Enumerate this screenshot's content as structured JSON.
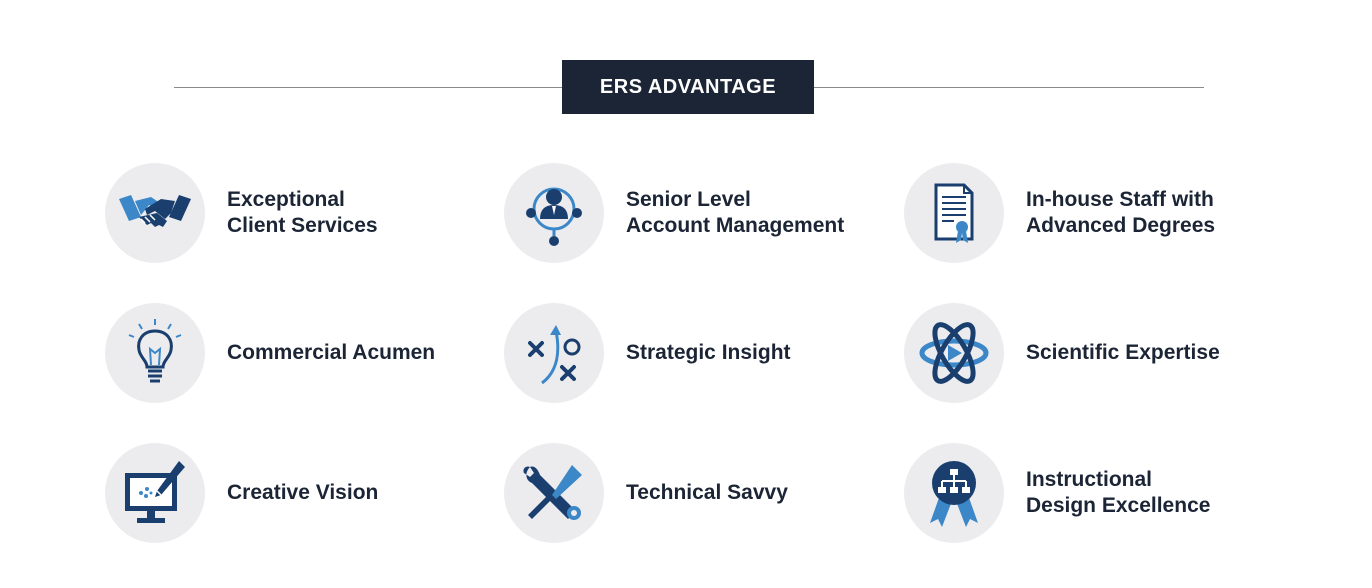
{
  "header": {
    "title": "ERS ADVANTAGE"
  },
  "colors": {
    "navy": "#1c2535",
    "dark_blue": "#1a3f6e",
    "light_blue": "#3b87c8",
    "circle_bg": "#ececee"
  },
  "items": [
    {
      "icon": "handshake-icon",
      "line1": "Exceptional",
      "line2": "Client Services"
    },
    {
      "icon": "account-network-icon",
      "line1": "Senior Level",
      "line2": "Account Management"
    },
    {
      "icon": "certificate-icon",
      "line1": "In-house Staff with",
      "line2": "Advanced Degrees"
    },
    {
      "icon": "lightbulb-icon",
      "line1": "Commercial Acumen",
      "line2": ""
    },
    {
      "icon": "strategy-play-icon",
      "line1": "Strategic Insight",
      "line2": ""
    },
    {
      "icon": "atom-icon",
      "line1": "Scientific Expertise",
      "line2": ""
    },
    {
      "icon": "monitor-pen-icon",
      "line1": "Creative Vision",
      "line2": ""
    },
    {
      "icon": "wrench-screwdriver-icon",
      "line1": "Technical Savvy",
      "line2": ""
    },
    {
      "icon": "award-ribbon-icon",
      "line1": "Instructional",
      "line2": "Design Excellence"
    }
  ]
}
